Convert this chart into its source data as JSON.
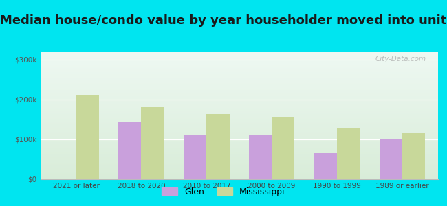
{
  "title": "Median house/condo value by year householder moved into unit",
  "categories": [
    "2021 or later",
    "2018 to 2020",
    "2010 to 2017",
    "2000 to 2009",
    "1990 to 1999",
    "1989 or earlier"
  ],
  "glen_values": [
    0,
    145000,
    110000,
    110000,
    65000,
    100000
  ],
  "mississippi_values": [
    210000,
    180000,
    163000,
    155000,
    128000,
    115000
  ],
  "glen_color": "#c9a0dc",
  "mississippi_color": "#c8d89a",
  "background_outer": "#00e5f0",
  "background_inner_top": "#eef8f2",
  "background_inner_bottom": "#d8ecd8",
  "ylabel_ticks": [
    "$0",
    "$100k",
    "$200k",
    "$300k"
  ],
  "ytick_values": [
    0,
    100000,
    200000,
    300000
  ],
  "ylim": [
    0,
    320000
  ],
  "bar_width": 0.35,
  "title_fontsize": 13,
  "legend_labels": [
    "Glen",
    "Mississippi"
  ],
  "watermark": "City-Data.com"
}
